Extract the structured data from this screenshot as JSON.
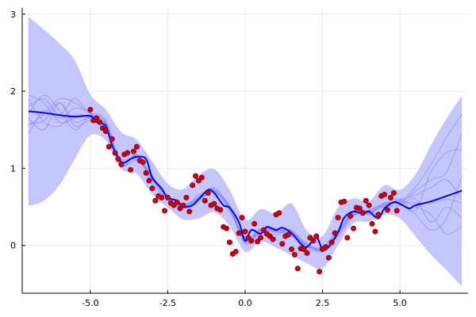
{
  "chart_data": {
    "type": "scatter",
    "title": "",
    "xlabel": "",
    "ylabel": "",
    "xlim": [
      -7.2,
      7.2
    ],
    "ylim": [
      -0.62,
      3.08
    ],
    "grid": true,
    "legend": "none",
    "x_ticks": [
      {
        "value": -5.0,
        "label": "-5.0"
      },
      {
        "value": -2.5,
        "label": "-2.5"
      },
      {
        "value": 0.0,
        "label": "0.0"
      },
      {
        "value": 2.5,
        "label": "2.5"
      },
      {
        "value": 5.0,
        "label": "5.0"
      }
    ],
    "y_ticks": [
      {
        "value": 0,
        "label": "0"
      },
      {
        "value": 1,
        "label": "1"
      },
      {
        "value": 2,
        "label": "2"
      },
      {
        "value": 3,
        "label": "3"
      }
    ],
    "colors": {
      "band": "#c6c6ff",
      "mean_line": "#0000ff",
      "sample_lines": "#8c8cf0",
      "points_fill": "#cc0000",
      "points_stroke": "#6a0030",
      "axis": "#000000",
      "grid": "#ececec"
    },
    "band": {
      "x": [
        -7.0,
        -6.5,
        -6.0,
        -5.5,
        -5.0,
        -4.5,
        -4.0,
        -3.5,
        -3.0,
        -2.5,
        -2.0,
        -1.5,
        -1.0,
        -0.5,
        0.0,
        0.5,
        1.0,
        1.5,
        2.0,
        2.5,
        3.0,
        3.5,
        4.0,
        4.5,
        5.0,
        5.5,
        6.0,
        6.5,
        7.0
      ],
      "upper": [
        2.97,
        2.8,
        2.62,
        2.4,
        1.96,
        1.76,
        1.47,
        1.37,
        1.09,
        0.8,
        0.73,
        0.91,
        0.99,
        0.72,
        0.33,
        0.47,
        0.41,
        0.54,
        0.19,
        0.12,
        0.49,
        0.61,
        0.57,
        0.78,
        0.72,
        0.92,
        1.3,
        1.64,
        1.94
      ],
      "lower": [
        0.51,
        0.58,
        0.78,
        1.12,
        1.43,
        1.36,
        0.99,
        0.93,
        0.66,
        0.49,
        0.34,
        0.35,
        0.43,
        0.25,
        -0.08,
        0.05,
        -0.03,
        -0.13,
        -0.23,
        -0.3,
        0.0,
        0.29,
        0.31,
        0.4,
        0.35,
        0.12,
        -0.12,
        -0.32,
        -0.53
      ]
    },
    "series": [
      {
        "role": "posterior-mean",
        "x": [
          -7.0,
          -6.5,
          -6.0,
          -5.5,
          -5.0,
          -4.8,
          -4.5,
          -4.3,
          -4.0,
          -3.7,
          -3.5,
          -3.2,
          -3.0,
          -2.7,
          -2.5,
          -2.2,
          -2.0,
          -1.7,
          -1.5,
          -1.2,
          -1.0,
          -0.7,
          -0.5,
          -0.2,
          0.0,
          0.2,
          0.5,
          0.7,
          1.0,
          1.2,
          1.5,
          1.8,
          2.0,
          2.3,
          2.5,
          2.7,
          3.0,
          3.2,
          3.5,
          3.8,
          4.0,
          4.3,
          4.5,
          4.8,
          5.0,
          5.3,
          5.5,
          6.0,
          6.5,
          7.0
        ],
        "y": [
          1.74,
          1.72,
          1.69,
          1.67,
          1.68,
          1.6,
          1.55,
          1.3,
          1.08,
          1.12,
          1.15,
          1.12,
          0.88,
          0.74,
          0.62,
          0.58,
          0.5,
          0.52,
          0.6,
          0.72,
          0.68,
          0.52,
          0.49,
          0.3,
          0.06,
          0.2,
          0.15,
          0.24,
          0.2,
          0.23,
          0.16,
          0.02,
          -0.02,
          0.1,
          -0.05,
          -0.02,
          0.17,
          0.36,
          0.44,
          0.41,
          0.44,
          0.35,
          0.48,
          0.56,
          0.54,
          0.48,
          0.52,
          0.57,
          0.64,
          0.71
        ]
      },
      {
        "role": "posterior-samples",
        "x": [
          -7.0,
          -6.5,
          -6.0,
          -5.5,
          -5.0,
          -4.5,
          -4.0,
          -3.5,
          -3.0,
          -2.5,
          -2.0,
          -1.5,
          -1.0,
          -0.5,
          0.0,
          0.5,
          1.0,
          1.5,
          2.0,
          2.5,
          3.0,
          3.5,
          4.0,
          4.5,
          5.0,
          5.5,
          6.0,
          6.5,
          7.0
        ],
        "samples": [
          [
            1.58,
            1.62,
            1.85,
            1.55,
            1.62,
            1.5,
            1.12,
            1.15,
            0.8,
            0.6,
            0.52,
            0.58,
            0.75,
            0.48,
            0.1,
            0.2,
            0.22,
            0.12,
            0.0,
            -0.05,
            0.2,
            0.42,
            0.42,
            0.53,
            0.6,
            0.45,
            0.95,
            1.2,
            1.25
          ],
          [
            1.8,
            1.9,
            1.7,
            1.9,
            1.7,
            1.58,
            1.03,
            1.18,
            0.85,
            0.64,
            0.48,
            0.66,
            0.68,
            0.52,
            0.02,
            0.16,
            0.14,
            0.2,
            -0.05,
            -0.02,
            0.12,
            0.38,
            0.46,
            0.5,
            0.52,
            0.6,
            0.3,
            0.5,
            0.35
          ],
          [
            1.45,
            1.75,
            1.65,
            1.78,
            1.72,
            1.62,
            1.06,
            1.1,
            0.9,
            0.58,
            0.53,
            0.6,
            0.7,
            0.45,
            0.08,
            0.22,
            0.2,
            0.18,
            0.02,
            -0.08,
            0.18,
            0.45,
            0.4,
            0.55,
            0.55,
            0.7,
            0.85,
            0.95,
            1.45
          ],
          [
            1.9,
            1.6,
            1.55,
            1.7,
            1.65,
            1.52,
            1.1,
            1.12,
            0.87,
            0.62,
            0.5,
            0.62,
            0.72,
            0.5,
            0.04,
            0.18,
            0.17,
            0.15,
            -0.01,
            -0.04,
            0.15,
            0.4,
            0.43,
            0.52,
            0.58,
            0.5,
            0.4,
            0.15,
            0.25
          ],
          [
            1.65,
            1.5,
            1.85,
            1.6,
            1.66,
            1.56,
            1.08,
            1.16,
            0.89,
            0.61,
            0.51,
            0.59,
            0.69,
            0.49,
            0.07,
            0.19,
            0.21,
            0.16,
            0.01,
            -0.03,
            0.16,
            0.41,
            0.45,
            0.54,
            0.57,
            0.75,
            1.05,
            1.4,
            1.7
          ],
          [
            1.95,
            1.85,
            1.6,
            1.65,
            1.69,
            1.58,
            1.07,
            1.14,
            0.86,
            0.63,
            0.49,
            0.61,
            0.71,
            0.47,
            0.05,
            0.21,
            0.18,
            0.17,
            0.0,
            -0.06,
            0.17,
            0.39,
            0.44,
            0.51,
            0.56,
            0.55,
            0.55,
            0.6,
            0.55
          ],
          [
            1.7,
            1.95,
            1.75,
            1.5,
            1.67,
            1.54,
            1.09,
            1.13,
            0.88,
            0.59,
            0.52,
            0.63,
            0.73,
            0.51,
            0.09,
            0.17,
            0.19,
            0.14,
            0.03,
            -0.07,
            0.14,
            0.43,
            0.41,
            0.53,
            0.59,
            0.65,
            0.75,
            0.85,
            0.6
          ],
          [
            1.55,
            1.7,
            1.9,
            1.85,
            1.71,
            1.6,
            1.05,
            1.17,
            0.84,
            0.62,
            0.5,
            0.6,
            0.7,
            0.46,
            0.06,
            0.2,
            0.2,
            0.19,
            -0.02,
            -0.01,
            0.19,
            0.44,
            0.46,
            0.55,
            0.53,
            0.4,
            0.2,
            0.35,
            0.9
          ]
        ]
      },
      {
        "role": "observations",
        "x": [
          -5.0,
          -4.9,
          -4.8,
          -4.7,
          -4.6,
          -4.5,
          -4.4,
          -4.3,
          -4.2,
          -4.1,
          -4.0,
          -3.9,
          -3.8,
          -3.7,
          -3.6,
          -3.5,
          -3.4,
          -3.3,
          -3.2,
          -3.1,
          -3.0,
          -2.9,
          -2.8,
          -2.7,
          -2.6,
          -2.5,
          -2.4,
          -2.3,
          -2.2,
          -2.1,
          -2.0,
          -1.9,
          -1.8,
          -1.7,
          -1.6,
          -1.5,
          -1.4,
          -1.3,
          -1.2,
          -1.1,
          -1.0,
          -0.9,
          -0.8,
          -0.7,
          -0.6,
          -0.5,
          -0.4,
          -0.3,
          -0.2,
          -0.1,
          0.0,
          0.1,
          0.2,
          0.3,
          0.4,
          0.5,
          0.6,
          0.7,
          0.8,
          0.9,
          1.0,
          1.1,
          1.2,
          1.3,
          1.4,
          1.5,
          1.6,
          1.7,
          1.8,
          1.9,
          2.0,
          2.1,
          2.2,
          2.3,
          2.4,
          2.5,
          2.6,
          2.7,
          2.8,
          2.9,
          3.0,
          3.1,
          3.2,
          3.3,
          3.4,
          3.5,
          3.6,
          3.7,
          3.8,
          3.9,
          4.0,
          4.1,
          4.2,
          4.3,
          4.4,
          4.5,
          4.6,
          4.7,
          4.8,
          4.9
        ],
        "y": [
          1.76,
          1.62,
          1.65,
          1.6,
          1.52,
          1.48,
          1.28,
          1.38,
          1.2,
          1.12,
          1.05,
          1.18,
          1.2,
          0.98,
          1.22,
          1.28,
          1.1,
          1.08,
          0.94,
          0.84,
          0.74,
          0.58,
          0.64,
          0.62,
          0.45,
          0.62,
          0.55,
          0.52,
          0.56,
          0.48,
          0.52,
          0.62,
          0.44,
          0.78,
          0.9,
          0.84,
          0.88,
          0.58,
          0.68,
          0.52,
          0.54,
          0.48,
          0.46,
          0.24,
          0.22,
          0.04,
          -0.11,
          -0.08,
          0.16,
          0.36,
          0.18,
          0.1,
          0.06,
          0.28,
          0.05,
          0.1,
          0.2,
          0.15,
          0.12,
          0.08,
          0.4,
          0.42,
          0.02,
          0.12,
          0.14,
          -0.05,
          -0.12,
          -0.3,
          -0.04,
          -0.05,
          -0.1,
          0.1,
          0.06,
          0.12,
          -0.34,
          -0.05,
          -0.02,
          -0.16,
          0.04,
          0.16,
          0.36,
          0.56,
          0.57,
          0.1,
          0.38,
          0.22,
          0.49,
          0.48,
          0.42,
          0.58,
          0.52,
          0.28,
          0.18,
          0.4,
          0.64,
          0.66,
          0.46,
          0.62,
          0.68,
          0.45
        ]
      }
    ]
  }
}
